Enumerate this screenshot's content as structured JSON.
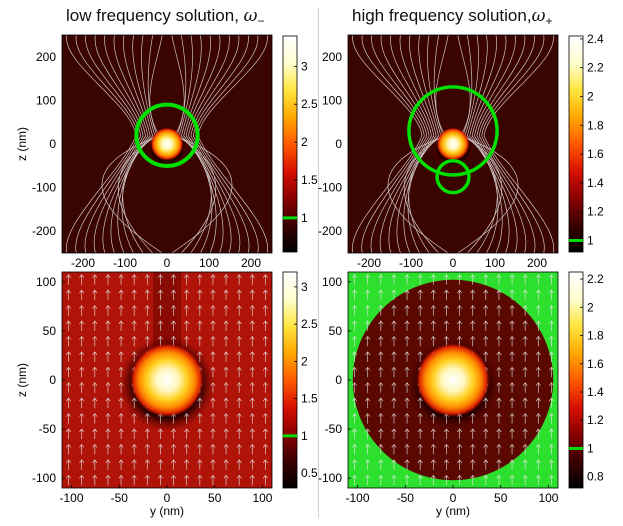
{
  "titles": {
    "left": "low frequency solution, ",
    "left_symbol": "ω",
    "left_sub": "−",
    "right": "high frequency solution,",
    "right_symbol": "ω",
    "right_sub": "+"
  },
  "colors": {
    "contour": "#00e000",
    "arrows": "#e8e8e8"
  },
  "chart_data": [
    {
      "type": "heatmap",
      "panel": "top-left",
      "title": "low frequency solution, ω−",
      "xlabel": "",
      "ylabel": "z (nm)",
      "xlim": [
        -250,
        250
      ],
      "ylim": [
        -250,
        250
      ],
      "xticks": [
        "-200",
        "-100",
        "0",
        "100",
        "200"
      ],
      "yticks": [
        "200",
        "100",
        "0",
        "-100",
        "-200"
      ],
      "xtick_values": [
        -200,
        -100,
        0,
        100,
        200
      ],
      "ytick_values": [
        200,
        100,
        0,
        -100,
        -200
      ],
      "colorbar": {
        "range": [
          0.55,
          3.4
        ],
        "ticks": [
          "3",
          "2.5",
          "2",
          "1.5",
          "1"
        ],
        "tick_values": [
          3,
          2.5,
          2,
          1.5,
          1
        ],
        "marker": 1
      },
      "sphere_radius_nm": 25,
      "contour": {
        "value": 1,
        "kind": "circle",
        "cz": 20,
        "r": 73
      },
      "field_lines": "source",
      "background": "dark"
    },
    {
      "type": "heatmap",
      "panel": "top-right",
      "title": "high frequency solution, ω+",
      "xlabel": "",
      "ylabel": "",
      "xlim": [
        -250,
        250
      ],
      "ylim": [
        -250,
        250
      ],
      "xticks": [
        "-200",
        "-100",
        "0",
        "100",
        "200"
      ],
      "yticks": [
        "200",
        "100",
        "0",
        "-100",
        "-200"
      ],
      "xtick_values": [
        -200,
        -100,
        0,
        100,
        200
      ],
      "ytick_values": [
        200,
        100,
        0,
        -100,
        -200
      ],
      "colorbar": {
        "range": [
          0.92,
          2.42
        ],
        "ticks": [
          "2.4",
          "2.2",
          "2",
          "1.8",
          "1.6",
          "1.4",
          "1.2",
          "1"
        ],
        "tick_values": [
          2.4,
          2.2,
          2,
          1.8,
          1.6,
          1.4,
          1.2,
          1
        ],
        "marker": 1
      },
      "sphere_radius_nm": 25,
      "contour": {
        "value": 1,
        "kind": "mushroom",
        "cz": 30,
        "r": 105,
        "cap_cz": -75,
        "cap_r": 38
      },
      "field_lines": "source",
      "background": "dark"
    },
    {
      "type": "heatmap",
      "panel": "bottom-left",
      "title": "",
      "xlabel": "y (nm)",
      "ylabel": "z (nm)",
      "xlim": [
        -110,
        110
      ],
      "ylim": [
        -110,
        110
      ],
      "xticks": [
        "-100",
        "-50",
        "0",
        "50",
        "100"
      ],
      "yticks": [
        "100",
        "50",
        "0",
        "-50",
        "-100"
      ],
      "xtick_values": [
        -100,
        -50,
        0,
        50,
        100
      ],
      "ytick_values": [
        100,
        50,
        0,
        -50,
        -100
      ],
      "colorbar": {
        "range": [
          0.3,
          3.2
        ],
        "ticks": [
          "3",
          "2.5",
          "2",
          "1.5",
          "1",
          "0.5"
        ],
        "tick_values": [
          3,
          2.5,
          2,
          1.5,
          1,
          0.5
        ],
        "marker": 1
      },
      "sphere_radius_nm": 25,
      "contour": null,
      "field_lines": "uniform",
      "background": "red"
    },
    {
      "type": "heatmap",
      "panel": "bottom-right",
      "title": "",
      "xlabel": "y (nm)",
      "ylabel": "",
      "xlim": [
        -110,
        110
      ],
      "ylim": [
        -110,
        110
      ],
      "xticks": [
        "-100",
        "-50",
        "0",
        "50",
        "100"
      ],
      "yticks": [
        "100",
        "50",
        "0",
        "-50",
        "-100"
      ],
      "xtick_values": [
        -100,
        -50,
        0,
        50,
        100
      ],
      "ytick_values": [
        100,
        50,
        0,
        -50,
        -100
      ],
      "colorbar": {
        "range": [
          0.72,
          2.25
        ],
        "ticks": [
          "2.2",
          "2",
          "1.8",
          "1.6",
          "1.4",
          "1.2",
          "1",
          "0.8"
        ],
        "tick_values": [
          2.2,
          2,
          1.8,
          1.6,
          1.4,
          1.2,
          1,
          0.8
        ],
        "marker": 1
      },
      "sphere_radius_nm": 25,
      "contour": {
        "value": 1,
        "kind": "filled-outside",
        "r": 105
      },
      "field_lines": "uniform",
      "background": "dark"
    }
  ]
}
